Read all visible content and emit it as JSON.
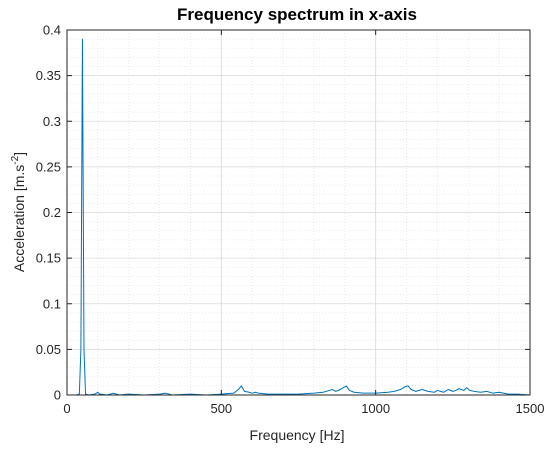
{
  "chart_data": {
    "type": "line",
    "title": "Frequency spectrum in x-axis",
    "xlabel": "Frequency [Hz]",
    "ylabel_main": "Acceleration [m.s",
    "ylabel_sup": "-2",
    "ylabel_end": "]",
    "xlim": [
      0,
      1500
    ],
    "ylim": [
      0,
      0.4
    ],
    "xticks": [
      0,
      500,
      1000,
      1500
    ],
    "xtick_labels": [
      "0",
      "500",
      "1000",
      "1500"
    ],
    "yticks": [
      0,
      0.05,
      0.1,
      0.15,
      0.2,
      0.25,
      0.3,
      0.35,
      0.4
    ],
    "ytick_labels": [
      "0",
      "0.05",
      "0.1",
      "0.15",
      "0.2",
      "0.25",
      "0.3",
      "0.35",
      "0.4"
    ],
    "grid": true,
    "minor_grid": true,
    "line_color": "#0072BD",
    "series": [
      {
        "x": [
          0,
          30,
          40,
          45,
          50,
          55,
          60,
          70,
          90,
          100,
          105,
          110,
          130,
          150,
          160,
          170,
          200,
          250,
          300,
          320,
          340,
          400,
          450,
          500,
          540,
          555,
          565,
          575,
          590,
          600,
          610,
          620,
          650,
          700,
          750,
          800,
          830,
          850,
          860,
          870,
          880,
          895,
          905,
          915,
          930,
          960,
          1000,
          1040,
          1060,
          1080,
          1095,
          1105,
          1115,
          1130,
          1150,
          1170,
          1190,
          1200,
          1210,
          1220,
          1235,
          1250,
          1260,
          1270,
          1285,
          1295,
          1305,
          1320,
          1340,
          1360,
          1380,
          1400,
          1430,
          1460,
          1500
        ],
        "y": [
          0,
          0,
          0.001,
          0.05,
          0.39,
          0.05,
          0.001,
          0,
          0.001,
          0.003,
          0.001,
          0.001,
          0,
          0.002,
          0.001,
          0,
          0.001,
          0,
          0.001,
          0.002,
          0,
          0.001,
          0,
          0.001,
          0.002,
          0.006,
          0.01,
          0.004,
          0.003,
          0.002,
          0.003,
          0.002,
          0.001,
          0.001,
          0.001,
          0.002,
          0.003,
          0.005,
          0.006,
          0.004,
          0.005,
          0.008,
          0.01,
          0.005,
          0.003,
          0.002,
          0.002,
          0.003,
          0.004,
          0.006,
          0.009,
          0.01,
          0.006,
          0.004,
          0.006,
          0.004,
          0.003,
          0.005,
          0.004,
          0.003,
          0.006,
          0.004,
          0.005,
          0.007,
          0.005,
          0.008,
          0.005,
          0.004,
          0.003,
          0.004,
          0.002,
          0.003,
          0.001,
          0.001,
          0
        ]
      }
    ]
  }
}
